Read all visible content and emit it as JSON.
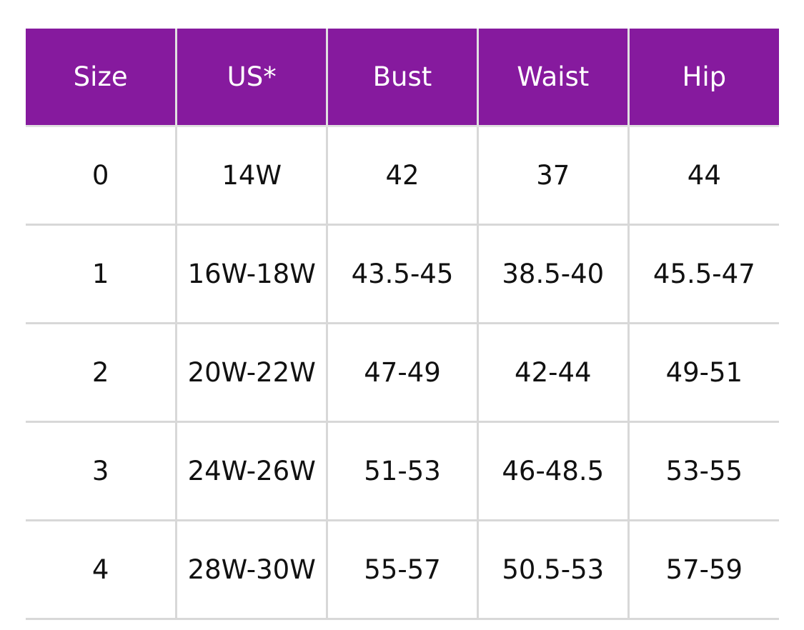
{
  "table": {
    "header": [
      "Size",
      "US*",
      "Bust",
      "Waist",
      "Hip"
    ],
    "rows": [
      [
        "0",
        "14W",
        "42",
        "37",
        "44"
      ],
      [
        "1",
        "16W-18W",
        "43.5-45",
        "38.5-40",
        "45.5-47"
      ],
      [
        "2",
        "20W-22W",
        "47-49",
        "42-44",
        "49-51"
      ],
      [
        "3",
        "24W-26W",
        "51-53",
        "46-48.5",
        "53-55"
      ],
      [
        "4",
        "28W-30W",
        "55-57",
        "50.5-53",
        "57-59"
      ]
    ]
  }
}
